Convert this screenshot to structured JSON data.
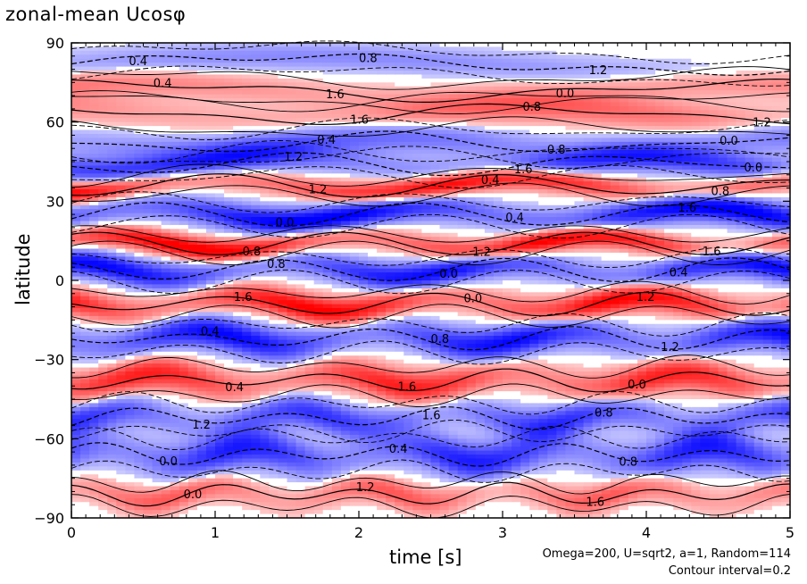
{
  "chart_data": {
    "type": "contour",
    "title": "zonal-mean Ucosφ",
    "xlabel": "time [s]",
    "ylabel": "latitude",
    "xlim": [
      0,
      5
    ],
    "ylim": [
      -90,
      90
    ],
    "xticks": [
      "0",
      "1",
      "2",
      "3",
      "4",
      "5"
    ],
    "yticks": [
      "90",
      "60",
      "30",
      "0",
      "−30",
      "−60",
      "−90"
    ],
    "contour_interval": 0.2,
    "colors": {
      "positive": "#ff2020",
      "negative": "#1010ff",
      "zero": "#ffffff"
    },
    "contour_labels": [
      "0.4",
      "0.8",
      "1.2",
      "1.6",
      "0.0"
    ],
    "bands": [
      {
        "lat": 82,
        "width": 5,
        "amp": -0.5
      },
      {
        "lat": 72,
        "width": 5,
        "amp": 0.6
      },
      {
        "lat": 63,
        "width": 6,
        "amp": 0.8
      },
      {
        "lat": 52,
        "width": 6,
        "amp": -0.9
      },
      {
        "lat": 44,
        "width": 5,
        "amp": -1.2
      },
      {
        "lat": 36,
        "width": 4,
        "amp": 1.8
      },
      {
        "lat": 25,
        "width": 5,
        "amp": -1.8
      },
      {
        "lat": 14,
        "width": 4,
        "amp": 1.8
      },
      {
        "lat": 4,
        "width": 5,
        "amp": -1.6
      },
      {
        "lat": -9,
        "width": 5,
        "amp": 1.7
      },
      {
        "lat": -22,
        "width": 6,
        "amp": -1.6
      },
      {
        "lat": -38,
        "width": 6,
        "amp": 1.4
      },
      {
        "lat": -52,
        "width": 6,
        "amp": -1.2
      },
      {
        "lat": -66,
        "width": 7,
        "amp": -1.4
      },
      {
        "lat": -81,
        "width": 5,
        "amp": 0.9
      }
    ]
  },
  "footnote": {
    "line1": "Omega=200, U=sqrt2, a=1, Random=114",
    "line2": "Contour interval=0.2"
  }
}
